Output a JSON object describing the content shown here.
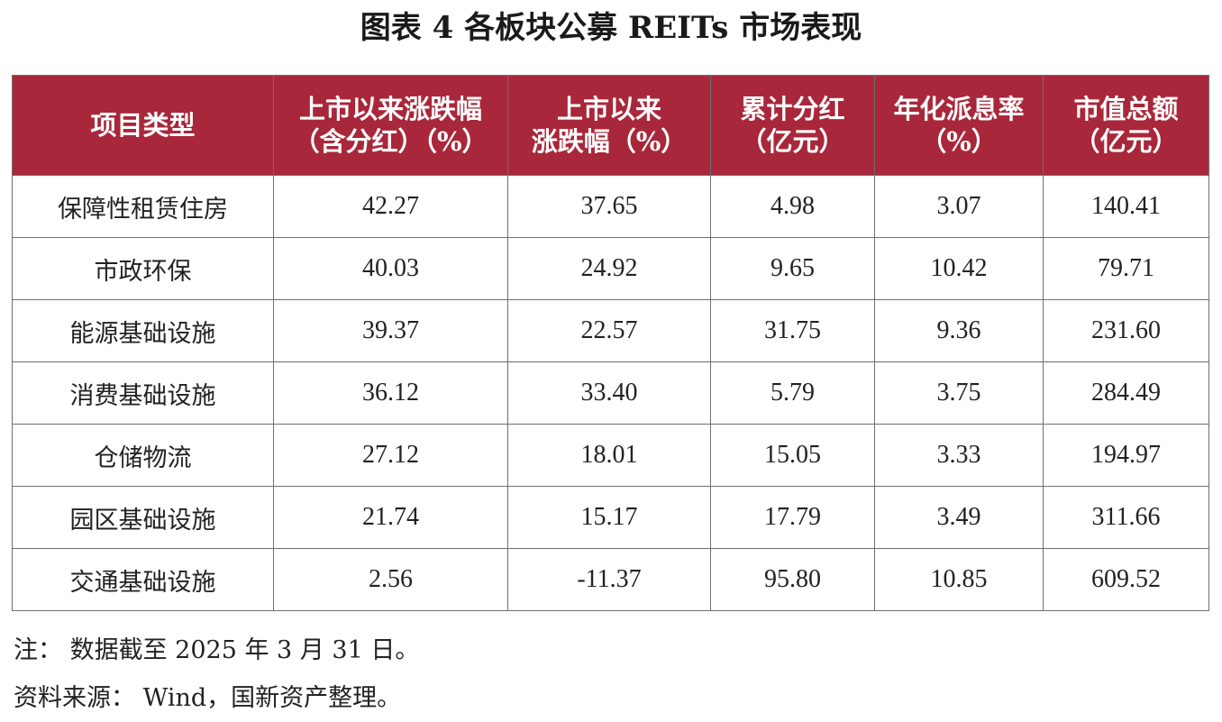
{
  "title": "图表 4  各板块公募 REITs 市场表现",
  "table": {
    "header_bg": "#a9273a",
    "columns": [
      {
        "line1": "项目类型",
        "line2": ""
      },
      {
        "line1": "上市以来涨跌幅",
        "line2": "（含分红）（%）"
      },
      {
        "line1": "上市以来",
        "line2": "涨跌幅（%）"
      },
      {
        "line1": "累计分红",
        "line2": "（亿元）"
      },
      {
        "line1": "年化派息率",
        "line2": "（%）"
      },
      {
        "line1": "市值总额",
        "line2": "（亿元）"
      }
    ],
    "rows": [
      [
        "保障性租赁住房",
        "42.27",
        "37.65",
        "4.98",
        "3.07",
        "140.41"
      ],
      [
        "市政环保",
        "40.03",
        "24.92",
        "9.65",
        "10.42",
        "79.71"
      ],
      [
        "能源基础设施",
        "39.37",
        "22.57",
        "31.75",
        "9.36",
        "231.60"
      ],
      [
        "消费基础设施",
        "36.12",
        "33.40",
        "5.79",
        "3.75",
        "284.49"
      ],
      [
        "仓储物流",
        "27.12",
        "18.01",
        "15.05",
        "3.33",
        "194.97"
      ],
      [
        "园区基础设施",
        "21.74",
        "15.17",
        "17.79",
        "3.49",
        "311.66"
      ],
      [
        "交通基础设施",
        "2.56",
        "-11.37",
        "95.80",
        "10.85",
        "609.52"
      ]
    ]
  },
  "notes": {
    "note": "注：  数据截至 2025 年 3 月 31 日。",
    "source": "资料来源：  Wind，国新资产整理。"
  }
}
